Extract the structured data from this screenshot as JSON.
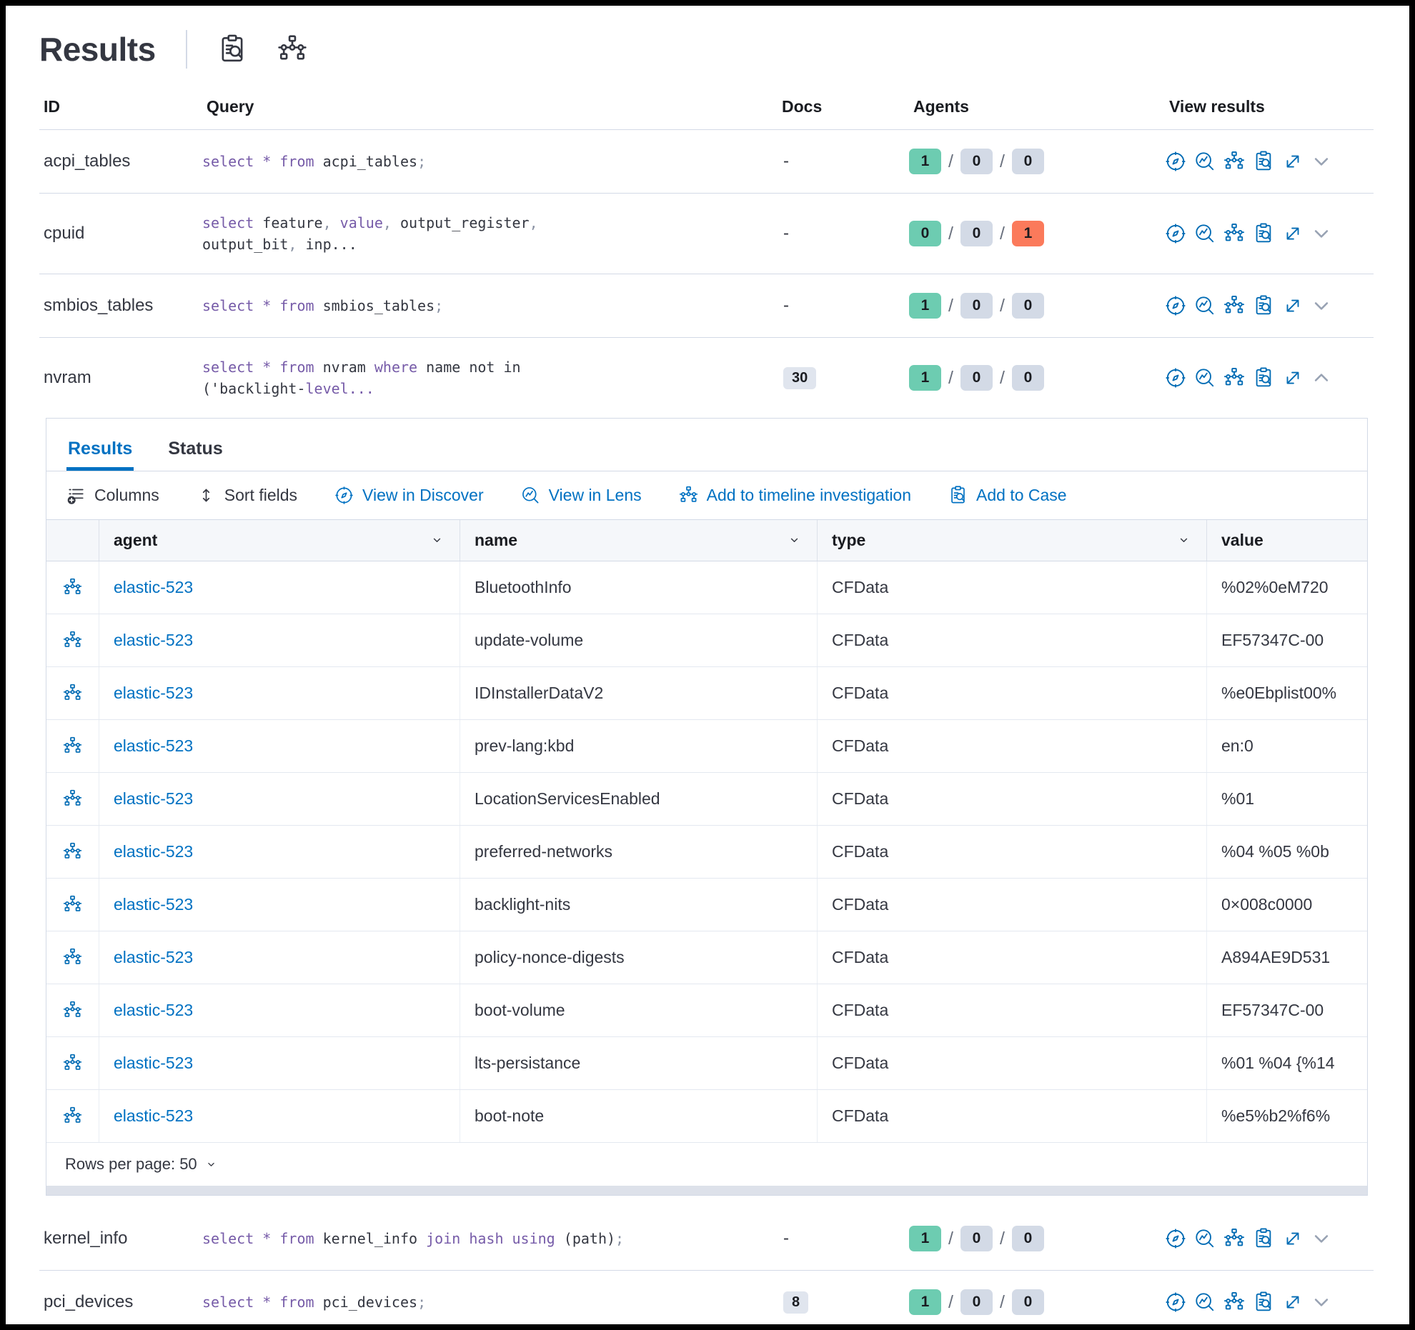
{
  "header": {
    "title": "Results",
    "icons": [
      "inspect-icon",
      "timeline-icon"
    ]
  },
  "colors": {
    "accent_blue": "#0071C2",
    "icon_blue": "#006BB4",
    "keyword_purple": "#765BA8",
    "badge_success_green": "#6DCCB1",
    "badge_neutral_gray": "#D3DAE6",
    "badge_failed_red": "#FB7A5B"
  },
  "results_table": {
    "columns": [
      "ID",
      "Query",
      "Docs",
      "Agents",
      "View results"
    ],
    "view_action_icons": [
      "discover-icon",
      "lens-icon",
      "timeline-icon",
      "case-icon",
      "expand-icon"
    ],
    "rows": [
      {
        "id": "acpi_tables",
        "section": "top",
        "expanded": false,
        "docs": "-",
        "agents": [
          1,
          0,
          0
        ],
        "query": [
          {
            "t": "select",
            "c": "kw"
          },
          {
            "t": " ",
            "c": "id"
          },
          {
            "t": "*",
            "c": "kw"
          },
          {
            "t": " ",
            "c": "id"
          },
          {
            "t": "from",
            "c": "kw"
          },
          {
            "t": " acpi_tables",
            "c": "id"
          },
          {
            "t": ";",
            "c": "pt"
          }
        ]
      },
      {
        "id": "cpuid",
        "section": "top",
        "expanded": false,
        "docs": "-",
        "agents": [
          0,
          0,
          1
        ],
        "query": [
          {
            "t": "select",
            "c": "kw"
          },
          {
            "t": " feature",
            "c": "id"
          },
          {
            "t": ", ",
            "c": "pt"
          },
          {
            "t": "value",
            "c": "kw"
          },
          {
            "t": ", ",
            "c": "pt"
          },
          {
            "t": "output_register",
            "c": "id"
          },
          {
            "t": ",\n",
            "c": "pt"
          },
          {
            "t": "output_bit",
            "c": "id"
          },
          {
            "t": ", ",
            "c": "pt"
          },
          {
            "t": "inp...",
            "c": "id"
          }
        ]
      },
      {
        "id": "smbios_tables",
        "section": "top",
        "expanded": false,
        "docs": "-",
        "agents": [
          1,
          0,
          0
        ],
        "query": [
          {
            "t": "select",
            "c": "kw"
          },
          {
            "t": " ",
            "c": "id"
          },
          {
            "t": "*",
            "c": "kw"
          },
          {
            "t": " ",
            "c": "id"
          },
          {
            "t": "from",
            "c": "kw"
          },
          {
            "t": " smbios_tables",
            "c": "id"
          },
          {
            "t": ";",
            "c": "pt"
          }
        ]
      },
      {
        "id": "nvram",
        "section": "top",
        "expanded": true,
        "docs": "30",
        "agents": [
          1,
          0,
          0
        ],
        "query": [
          {
            "t": "select",
            "c": "kw"
          },
          {
            "t": " ",
            "c": "id"
          },
          {
            "t": "*",
            "c": "kw"
          },
          {
            "t": " ",
            "c": "id"
          },
          {
            "t": "from",
            "c": "kw"
          },
          {
            "t": " nvram ",
            "c": "id"
          },
          {
            "t": "where",
            "c": "kw"
          },
          {
            "t": " name not in\n('backlight-",
            "c": "id"
          },
          {
            "t": "level...",
            "c": "kw"
          }
        ]
      },
      {
        "id": "kernel_info",
        "section": "bottom",
        "expanded": false,
        "docs": "-",
        "agents": [
          1,
          0,
          0
        ],
        "query": [
          {
            "t": "select",
            "c": "kw"
          },
          {
            "t": " ",
            "c": "id"
          },
          {
            "t": "*",
            "c": "kw"
          },
          {
            "t": " ",
            "c": "id"
          },
          {
            "t": "from",
            "c": "kw"
          },
          {
            "t": " kernel_info ",
            "c": "id"
          },
          {
            "t": "join hash using",
            "c": "kw"
          },
          {
            "t": " (path)",
            "c": "id"
          },
          {
            "t": ";",
            "c": "pt"
          }
        ]
      },
      {
        "id": "pci_devices",
        "section": "bottom",
        "expanded": false,
        "docs": "8",
        "agents": [
          1,
          0,
          0
        ],
        "query": [
          {
            "t": "select",
            "c": "kw"
          },
          {
            "t": " ",
            "c": "id"
          },
          {
            "t": "*",
            "c": "kw"
          },
          {
            "t": " ",
            "c": "id"
          },
          {
            "t": "from",
            "c": "kw"
          },
          {
            "t": " pci_devices",
            "c": "id"
          },
          {
            "t": ";",
            "c": "pt"
          }
        ]
      }
    ]
  },
  "expanded_panel": {
    "tabs": [
      {
        "label": "Results",
        "active": true
      },
      {
        "label": "Status",
        "active": false
      }
    ],
    "toolbar": [
      {
        "label": "Columns",
        "icon": "columns-icon",
        "variant": "dark"
      },
      {
        "label": "Sort fields",
        "icon": "sort-icon",
        "variant": "dark"
      },
      {
        "label": "View in Discover",
        "icon": "discover-icon",
        "variant": "link"
      },
      {
        "label": "View in Lens",
        "icon": "lens-icon",
        "variant": "link"
      },
      {
        "label": "Add to timeline investigation",
        "icon": "timeline-icon",
        "variant": "link"
      },
      {
        "label": "Add to Case",
        "icon": "case-icon",
        "variant": "link"
      }
    ],
    "grid": {
      "columns": [
        "agent",
        "name",
        "type",
        "value"
      ],
      "rows": [
        {
          "agent": "elastic-523",
          "name": "BluetoothInfo",
          "type": "CFData",
          "value": "%02%0eM720"
        },
        {
          "agent": "elastic-523",
          "name": "update-volume",
          "type": "CFData",
          "value": "EF57347C-00"
        },
        {
          "agent": "elastic-523",
          "name": "IDInstallerDataV2",
          "type": "CFData",
          "value": "%e0Ebplist00%"
        },
        {
          "agent": "elastic-523",
          "name": "prev-lang:kbd",
          "type": "CFData",
          "value": "en:0"
        },
        {
          "agent": "elastic-523",
          "name": "LocationServicesEnabled",
          "type": "CFData",
          "value": "%01"
        },
        {
          "agent": "elastic-523",
          "name": "preferred-networks",
          "type": "CFData",
          "value": "%04 %05 %0b"
        },
        {
          "agent": "elastic-523",
          "name": "backlight-nits",
          "type": "CFData",
          "value": "0×008c0000"
        },
        {
          "agent": "elastic-523",
          "name": "policy-nonce-digests",
          "type": "CFData",
          "value": "A894AE9D531"
        },
        {
          "agent": "elastic-523",
          "name": "boot-volume",
          "type": "CFData",
          "value": "EF57347C-00"
        },
        {
          "agent": "elastic-523",
          "name": "lts-persistance",
          "type": "CFData",
          "value": "%01 %04 {%14"
        },
        {
          "agent": "elastic-523",
          "name": "boot-note",
          "type": "CFData",
          "value": "%e5%b2%f6%"
        }
      ],
      "rows_per_page_label": "Rows per page: 50"
    }
  }
}
